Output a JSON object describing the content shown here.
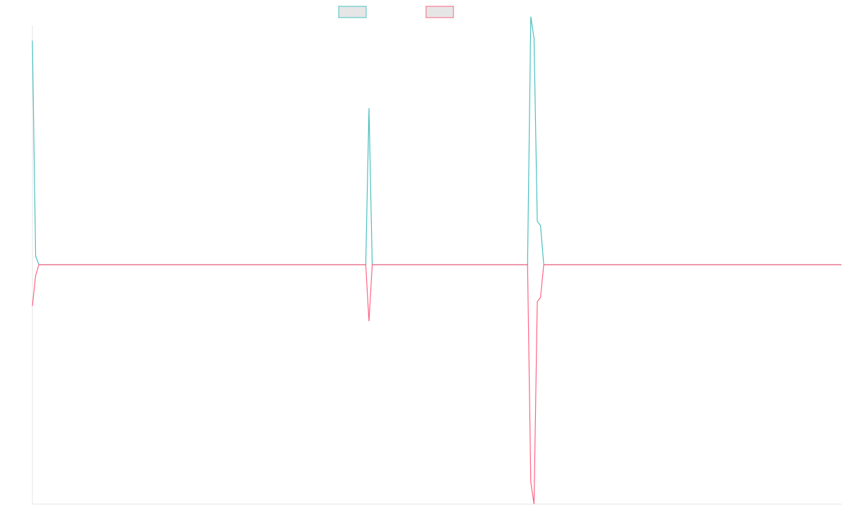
{
  "chart_data": {
    "type": "line",
    "title": "",
    "xlabel": "",
    "ylabel": "",
    "grid": false,
    "legend": {
      "position": "top-center",
      "entries": [
        "",
        ""
      ]
    },
    "x": [
      0,
      1,
      2,
      103,
      104,
      105,
      153,
      154,
      155,
      156,
      157,
      158,
      159,
      250
    ],
    "ylim": [
      -1.1,
      1.1
    ],
    "series": [
      {
        "name": "",
        "color": "#4bc0c0",
        "values": [
          1.03,
          0.04,
          0,
          0,
          0.72,
          0,
          0,
          1.14,
          1.04,
          0.2,
          0.18,
          0,
          0,
          0
        ]
      },
      {
        "name": "",
        "color": "#ff6384",
        "values": [
          -0.19,
          -0.05,
          0,
          0,
          -0.26,
          0,
          0,
          -1.0,
          -1.1,
          -0.17,
          -0.15,
          0,
          0,
          0
        ]
      }
    ]
  }
}
